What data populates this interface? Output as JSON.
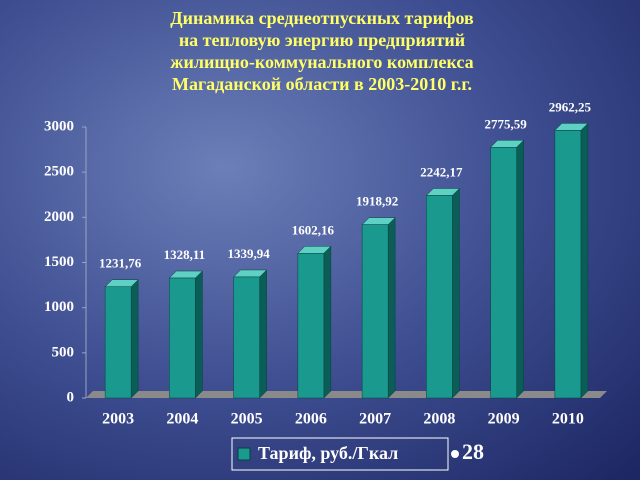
{
  "chart_data": {
    "type": "bar3d",
    "title": [
      "Динамика среднеотпускных тарифов",
      "на тепловую энергию предприятий",
      "жилищно-коммунального комплекса",
      "Магаданской области в 2003-2010 г.г."
    ],
    "categories": [
      "2003",
      "2004",
      "2005",
      "2006",
      "2007",
      "2008",
      "2009",
      "2010"
    ],
    "series": [
      {
        "name": "Тариф, руб./Гкал",
        "color": "#1a9a8e",
        "values": [
          1231.76,
          1328.11,
          1339.94,
          1602.16,
          1918.92,
          2242.17,
          2775.59,
          2962.25
        ],
        "value_labels": [
          "1231,76",
          "1328,11",
          "1339,94",
          "1602,16",
          "1918,92",
          "2242,17",
          "2775,59",
          "2962,25"
        ]
      }
    ],
    "ylim": [
      0,
      3000
    ],
    "yticks": [
      0,
      500,
      1000,
      1500,
      2000,
      2500,
      3000
    ]
  },
  "slide_number": "28"
}
